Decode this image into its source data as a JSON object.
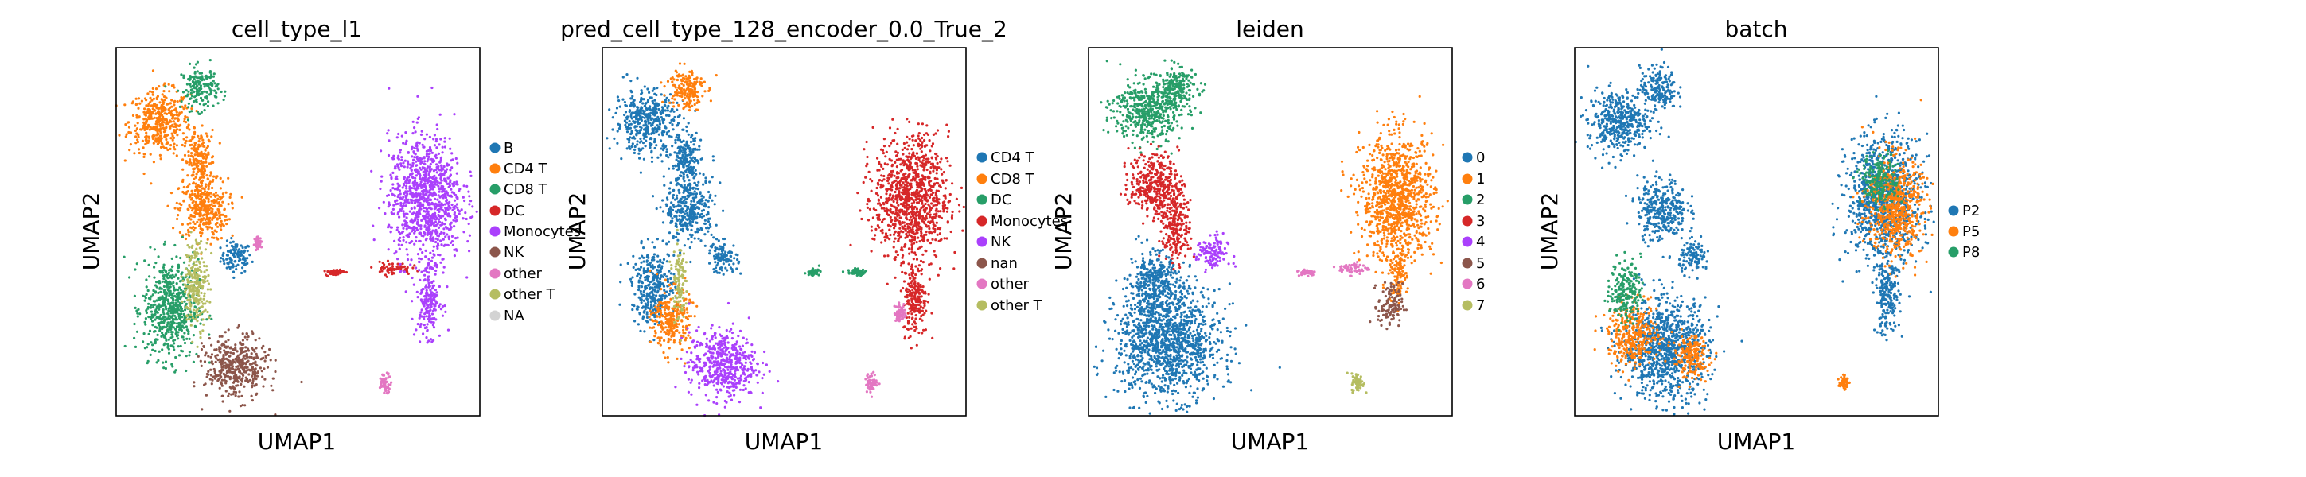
{
  "figure": {
    "panels": [
      {
        "title": "cell_type_l1",
        "xlabel": "UMAP1",
        "ylabel": "UMAP2",
        "legend": [
          {
            "label": "B",
            "color": "#1f77b4"
          },
          {
            "label": "CD4 T",
            "color": "#ff7f0e"
          },
          {
            "label": "CD8 T",
            "color": "#279e68"
          },
          {
            "label": "DC",
            "color": "#d62728"
          },
          {
            "label": "Monocytes",
            "color": "#aa40fc"
          },
          {
            "label": "NK",
            "color": "#8c564b"
          },
          {
            "label": "other",
            "color": "#e377c2"
          },
          {
            "label": "other T",
            "color": "#b5bd61"
          },
          {
            "label": "NA",
            "color": "#d3d3d3"
          }
        ]
      },
      {
        "title": "pred_cell_type_128_encoder_0.0_True_2",
        "xlabel": "UMAP1",
        "ylabel": "UMAP2",
        "legend": [
          {
            "label": "CD4 T",
            "color": "#1f77b4"
          },
          {
            "label": "CD8 T",
            "color": "#ff7f0e"
          },
          {
            "label": "DC",
            "color": "#279e68"
          },
          {
            "label": "Monocytes",
            "color": "#d62728"
          },
          {
            "label": "NK",
            "color": "#aa40fc"
          },
          {
            "label": "nan",
            "color": "#8c564b"
          },
          {
            "label": "other",
            "color": "#e377c2"
          },
          {
            "label": "other T",
            "color": "#b5bd61"
          }
        ]
      },
      {
        "title": "leiden",
        "xlabel": "UMAP1",
        "ylabel": "UMAP2",
        "legend": [
          {
            "label": "0",
            "color": "#1f77b4"
          },
          {
            "label": "1",
            "color": "#ff7f0e"
          },
          {
            "label": "2",
            "color": "#279e68"
          },
          {
            "label": "3",
            "color": "#d62728"
          },
          {
            "label": "4",
            "color": "#aa40fc"
          },
          {
            "label": "5",
            "color": "#8c564b"
          },
          {
            "label": "6",
            "color": "#e377c2"
          },
          {
            "label": "7",
            "color": "#b5bd61"
          }
        ]
      },
      {
        "title": "batch",
        "xlabel": "UMAP1",
        "ylabel": "UMAP2",
        "legend": [
          {
            "label": "P2",
            "color": "#1f77b4"
          },
          {
            "label": "P5",
            "color": "#ff7f0e"
          },
          {
            "label": "P8",
            "color": "#279e68"
          }
        ]
      }
    ]
  },
  "chart_data": [
    {
      "type": "scatter",
      "title": "cell_type_l1",
      "xlabel": "UMAP1",
      "ylabel": "UMAP2",
      "grid": false,
      "legend_placement": "right",
      "ticks": "none",
      "x_range": [
        0,
        10
      ],
      "y_range": [
        0,
        10
      ],
      "series": [
        {
          "name": "B",
          "color": "#1f77b4",
          "clusters": [
            {
              "x": 3.3,
              "y": 4.3,
              "rx": 0.5,
              "ry": 0.5
            }
          ]
        },
        {
          "name": "CD4 T",
          "color": "#ff7f0e",
          "clusters": [
            {
              "x": 1.2,
              "y": 8.0,
              "rx": 1.0,
              "ry": 1.0
            },
            {
              "x": 2.4,
              "y": 5.6,
              "rx": 0.8,
              "ry": 1.0
            },
            {
              "x": 2.3,
              "y": 6.9,
              "rx": 0.5,
              "ry": 1.0
            }
          ]
        },
        {
          "name": "CD8 T",
          "color": "#279e68",
          "clusters": [
            {
              "x": 2.3,
              "y": 8.9,
              "rx": 0.6,
              "ry": 0.7
            },
            {
              "x": 1.5,
              "y": 2.9,
              "rx": 0.9,
              "ry": 1.6
            }
          ]
        },
        {
          "name": "DC",
          "color": "#d62728",
          "clusters": [
            {
              "x": 7.6,
              "y": 4.0,
              "rx": 0.6,
              "ry": 0.2
            },
            {
              "x": 6.0,
              "y": 3.9,
              "rx": 0.3,
              "ry": 0.1
            }
          ]
        },
        {
          "name": "Monocytes",
          "color": "#aa40fc",
          "clusters": [
            {
              "x": 8.5,
              "y": 5.9,
              "rx": 1.2,
              "ry": 2.0
            },
            {
              "x": 8.6,
              "y": 3.2,
              "rx": 0.4,
              "ry": 1.2
            }
          ]
        },
        {
          "name": "NK",
          "color": "#8c564b",
          "clusters": [
            {
              "x": 3.3,
              "y": 1.3,
              "rx": 1.0,
              "ry": 1.0
            }
          ]
        },
        {
          "name": "other",
          "color": "#e377c2",
          "clusters": [
            {
              "x": 7.4,
              "y": 0.9,
              "rx": 0.2,
              "ry": 0.3
            },
            {
              "x": 3.9,
              "y": 4.7,
              "rx": 0.1,
              "ry": 0.2
            }
          ]
        },
        {
          "name": "other T",
          "color": "#b5bd61",
          "clusters": [
            {
              "x": 2.2,
              "y": 3.6,
              "rx": 0.4,
              "ry": 1.4
            }
          ]
        },
        {
          "name": "NA",
          "color": "#d3d3d3",
          "clusters": []
        }
      ]
    },
    {
      "type": "scatter",
      "title": "pred_cell_type_128_encoder_0.0_True_2",
      "xlabel": "UMAP1",
      "ylabel": "UMAP2",
      "grid": false,
      "legend_placement": "right",
      "ticks": "none",
      "x_range": [
        0,
        10
      ],
      "y_range": [
        0,
        10
      ],
      "series": [
        {
          "name": "CD4 T",
          "color": "#1f77b4",
          "clusters": [
            {
              "x": 1.2,
              "y": 8.0,
              "rx": 1.0,
              "ry": 1.0
            },
            {
              "x": 2.4,
              "y": 5.6,
              "rx": 0.8,
              "ry": 1.0
            },
            {
              "x": 2.3,
              "y": 6.9,
              "rx": 0.5,
              "ry": 1.0
            },
            {
              "x": 3.3,
              "y": 4.3,
              "rx": 0.5,
              "ry": 0.5
            },
            {
              "x": 1.4,
              "y": 3.5,
              "rx": 0.7,
              "ry": 1.2
            }
          ]
        },
        {
          "name": "CD8 T",
          "color": "#ff7f0e",
          "clusters": [
            {
              "x": 2.3,
              "y": 8.9,
              "rx": 0.6,
              "ry": 0.7
            },
            {
              "x": 1.9,
              "y": 2.6,
              "rx": 0.6,
              "ry": 1.0
            }
          ]
        },
        {
          "name": "DC",
          "color": "#279e68",
          "clusters": [
            {
              "x": 7.0,
              "y": 3.9,
              "rx": 0.3,
              "ry": 0.1
            },
            {
              "x": 5.8,
              "y": 3.9,
              "rx": 0.2,
              "ry": 0.1
            }
          ]
        },
        {
          "name": "Monocytes",
          "color": "#d62728",
          "clusters": [
            {
              "x": 8.5,
              "y": 5.9,
              "rx": 1.2,
              "ry": 2.0
            },
            {
              "x": 8.6,
              "y": 3.2,
              "rx": 0.4,
              "ry": 1.2
            }
          ]
        },
        {
          "name": "NK",
          "color": "#aa40fc",
          "clusters": [
            {
              "x": 3.3,
              "y": 1.4,
              "rx": 1.1,
              "ry": 1.1
            }
          ]
        },
        {
          "name": "nan",
          "color": "#8c564b",
          "clusters": []
        },
        {
          "name": "other",
          "color": "#e377c2",
          "clusters": [
            {
              "x": 7.4,
              "y": 0.9,
              "rx": 0.2,
              "ry": 0.3
            },
            {
              "x": 8.2,
              "y": 2.8,
              "rx": 0.2,
              "ry": 0.3
            }
          ]
        },
        {
          "name": "other T",
          "color": "#b5bd61",
          "clusters": [
            {
              "x": 2.1,
              "y": 3.7,
              "rx": 0.2,
              "ry": 1.3
            }
          ]
        }
      ]
    },
    {
      "type": "scatter",
      "title": "leiden",
      "xlabel": "UMAP1",
      "ylabel": "UMAP2",
      "grid": false,
      "legend_placement": "right",
      "ticks": "none",
      "x_range": [
        0,
        10
      ],
      "y_range": [
        0,
        10
      ],
      "series": [
        {
          "name": "0",
          "color": "#1f77b4",
          "clusters": [
            {
              "x": 2.2,
              "y": 2.0,
              "rx": 1.7,
              "ry": 1.8
            },
            {
              "x": 1.8,
              "y": 3.6,
              "rx": 0.8,
              "ry": 1.0
            }
          ]
        },
        {
          "name": "1",
          "color": "#ff7f0e",
          "clusters": [
            {
              "x": 8.5,
              "y": 5.9,
              "rx": 1.2,
              "ry": 2.0
            },
            {
              "x": 8.5,
              "y": 3.8,
              "rx": 0.3,
              "ry": 0.8
            }
          ]
        },
        {
          "name": "2",
          "color": "#279e68",
          "clusters": [
            {
              "x": 1.6,
              "y": 8.3,
              "rx": 1.1,
              "ry": 1.0
            },
            {
              "x": 2.4,
              "y": 8.9,
              "rx": 0.7,
              "ry": 0.7
            }
          ]
        },
        {
          "name": "3",
          "color": "#d62728",
          "clusters": [
            {
              "x": 1.8,
              "y": 6.3,
              "rx": 0.8,
              "ry": 1.0
            },
            {
              "x": 2.4,
              "y": 5.2,
              "rx": 0.5,
              "ry": 1.2
            }
          ]
        },
        {
          "name": "4",
          "color": "#aa40fc",
          "clusters": [
            {
              "x": 3.4,
              "y": 4.4,
              "rx": 0.5,
              "ry": 0.6
            }
          ]
        },
        {
          "name": "5",
          "color": "#8c564b",
          "clusters": [
            {
              "x": 8.3,
              "y": 3.0,
              "rx": 0.4,
              "ry": 0.7
            }
          ]
        },
        {
          "name": "6",
          "color": "#e377c2",
          "clusters": [
            {
              "x": 7.3,
              "y": 4.0,
              "rx": 0.5,
              "ry": 0.2
            },
            {
              "x": 6.0,
              "y": 3.9,
              "rx": 0.3,
              "ry": 0.1
            }
          ]
        },
        {
          "name": "7",
          "color": "#b5bd61",
          "clusters": [
            {
              "x": 7.4,
              "y": 0.9,
              "rx": 0.2,
              "ry": 0.3
            }
          ]
        }
      ]
    },
    {
      "type": "scatter",
      "title": "batch",
      "xlabel": "UMAP1",
      "ylabel": "UMAP2",
      "grid": false,
      "legend_placement": "right",
      "ticks": "none",
      "x_range": [
        0,
        10
      ],
      "y_range": [
        0,
        10
      ],
      "series": [
        {
          "name": "P2",
          "color": "#1f77b4",
          "clusters": [
            {
              "x": 1.2,
              "y": 8.0,
              "rx": 1.0,
              "ry": 1.0
            },
            {
              "x": 2.3,
              "y": 8.9,
              "rx": 0.6,
              "ry": 0.7
            },
            {
              "x": 2.4,
              "y": 5.6,
              "rx": 0.8,
              "ry": 1.0
            },
            {
              "x": 3.3,
              "y": 4.3,
              "rx": 0.5,
              "ry": 0.5
            },
            {
              "x": 8.5,
              "y": 5.9,
              "rx": 1.2,
              "ry": 2.0
            },
            {
              "x": 2.5,
              "y": 1.8,
              "rx": 1.4,
              "ry": 1.6
            },
            {
              "x": 8.6,
              "y": 3.2,
              "rx": 0.4,
              "ry": 1.2
            }
          ]
        },
        {
          "name": "P5",
          "color": "#ff7f0e",
          "clusters": [
            {
              "x": 1.6,
              "y": 2.2,
              "rx": 0.8,
              "ry": 1.0
            },
            {
              "x": 8.8,
              "y": 5.7,
              "rx": 0.9,
              "ry": 1.6
            },
            {
              "x": 3.2,
              "y": 1.6,
              "rx": 0.6,
              "ry": 0.7
            },
            {
              "x": 7.4,
              "y": 0.9,
              "rx": 0.15,
              "ry": 0.2
            }
          ]
        },
        {
          "name": "P8",
          "color": "#279e68",
          "clusters": [
            {
              "x": 1.4,
              "y": 3.4,
              "rx": 0.5,
              "ry": 1.0
            },
            {
              "x": 8.4,
              "y": 6.4,
              "rx": 0.6,
              "ry": 0.8
            }
          ]
        }
      ]
    }
  ]
}
